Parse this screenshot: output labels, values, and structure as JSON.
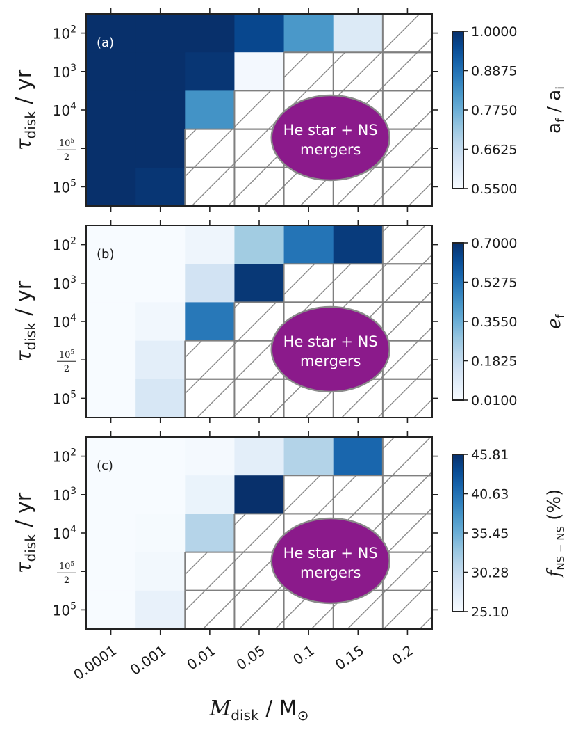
{
  "chart_data": {
    "type": "heatmap",
    "x_categories": [
      "0.0001",
      "0.001",
      "0.01",
      "0.05",
      "0.1",
      "0.15",
      "0.2"
    ],
    "y_categories": [
      {
        "base": "10",
        "exp": "2"
      },
      {
        "base": "10",
        "exp": "3"
      },
      {
        "base": "10",
        "exp": "4"
      },
      {
        "frac_num": "10",
        "frac_exp": "5",
        "frac_den": "2"
      },
      {
        "base": "10",
        "exp": "5"
      }
    ],
    "xlabel": {
      "main": "M",
      "sub": "disk",
      "sep": " / ",
      "unit": "M",
      "unit_sub": "⊙"
    },
    "ylabel": {
      "main": "τ",
      "sub": "disk",
      "sep": " / ",
      "unit": "yr"
    },
    "annotation": {
      "line1": "He star + NS",
      "line2": "mergers",
      "color": "#8b1a8b"
    },
    "colormap": "Blues",
    "panels": [
      {
        "tag": "(a)",
        "colorbar_label": {
          "main": "a",
          "sub": "f",
          "sep": " / ",
          "main2": "a",
          "sub2": "i"
        },
        "colorbar_ticks": [
          "1.0000",
          "0.8875",
          "0.7750",
          "0.6625",
          "0.5500"
        ],
        "vmin": 0.55,
        "vmax": 1.0,
        "values": [
          [
            1.0,
            1.0,
            1.0,
            0.96,
            0.82,
            0.61,
            null
          ],
          [
            1.0,
            1.0,
            0.99,
            0.56,
            null,
            null,
            null
          ],
          [
            1.0,
            1.0,
            0.83,
            null,
            null,
            null,
            null
          ],
          [
            1.0,
            1.0,
            null,
            null,
            null,
            null,
            null
          ],
          [
            1.0,
            0.99,
            null,
            null,
            null,
            null,
            null
          ]
        ]
      },
      {
        "tag": "(b)",
        "colorbar_label": {
          "main": "e",
          "sub": "f"
        },
        "colorbar_ticks": [
          "0.7000",
          "0.5275",
          "0.3550",
          "0.1825",
          "0.0100"
        ],
        "vmin": 0.01,
        "vmax": 0.7,
        "values": [
          [
            0.01,
            0.01,
            0.04,
            0.26,
            0.52,
            0.67,
            null
          ],
          [
            0.01,
            0.01,
            0.14,
            0.68,
            null,
            null,
            null
          ],
          [
            0.01,
            0.03,
            0.51,
            null,
            null,
            null,
            null
          ],
          [
            0.01,
            0.08,
            null,
            null,
            null,
            null,
            null
          ],
          [
            0.01,
            0.12,
            null,
            null,
            null,
            null,
            null
          ]
        ]
      },
      {
        "tag": "(c)",
        "colorbar_label": {
          "main": "f",
          "sub": "NS − NS",
          "suffix": " (%)"
        },
        "colorbar_ticks": [
          "45.81",
          "40.63",
          "35.45",
          "30.28",
          "25.10"
        ],
        "vmin": 25.1,
        "vmax": 45.81,
        "values": [
          [
            25.1,
            25.1,
            25.4,
            27.2,
            31.5,
            41.5,
            null
          ],
          [
            25.1,
            25.1,
            26.4,
            45.8,
            null,
            null,
            null
          ],
          [
            25.1,
            25.3,
            31.4,
            null,
            null,
            null,
            null
          ],
          [
            25.1,
            25.6,
            null,
            null,
            null,
            null,
            null
          ],
          [
            25.1,
            26.7,
            null,
            null,
            null,
            null,
            null
          ]
        ]
      }
    ]
  }
}
